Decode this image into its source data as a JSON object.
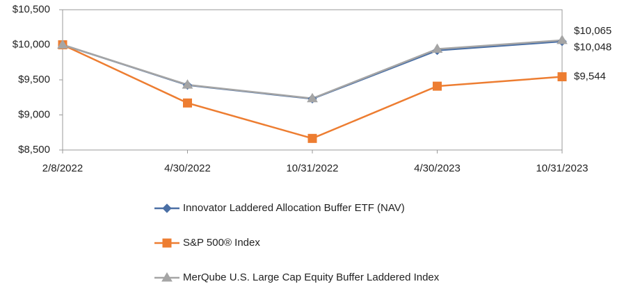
{
  "chart_data": {
    "type": "line",
    "categories": [
      "2/8/2022",
      "4/30/2022",
      "10/31/2022",
      "4/30/2023",
      "10/31/2023"
    ],
    "series": [
      {
        "name": "Innovator Laddered Allocation Buffer ETF (NAV)",
        "color": "#4a6fa5",
        "marker": "diamond",
        "values": [
          10000,
          9425,
          9230,
          9920,
          10048
        ],
        "value_labels": [
          null,
          null,
          null,
          null,
          "$10,048"
        ]
      },
      {
        "name": "S&P 500® Index",
        "color": "#ed7d31",
        "marker": "square",
        "values": [
          10000,
          9170,
          8665,
          9410,
          9544
        ],
        "value_labels": [
          null,
          null,
          null,
          null,
          "$9,544"
        ]
      },
      {
        "name": "MerQube U.S. Large Cap Equity Buffer Laddered Index",
        "color": "#a5a5a5",
        "marker": "triangle",
        "values": [
          10000,
          9430,
          9235,
          9940,
          10065
        ],
        "value_labels": [
          null,
          null,
          null,
          null,
          "$10,065"
        ]
      }
    ],
    "ylim": [
      8500,
      10500
    ],
    "yticks": [
      {
        "value": 8500,
        "label": "$8,500"
      },
      {
        "value": 9000,
        "label": "$9,000"
      },
      {
        "value": 9500,
        "label": "$9,500"
      },
      {
        "value": 10000,
        "label": "$10,000"
      },
      {
        "value": 10500,
        "label": "$10,500"
      }
    ],
    "grid": false
  }
}
